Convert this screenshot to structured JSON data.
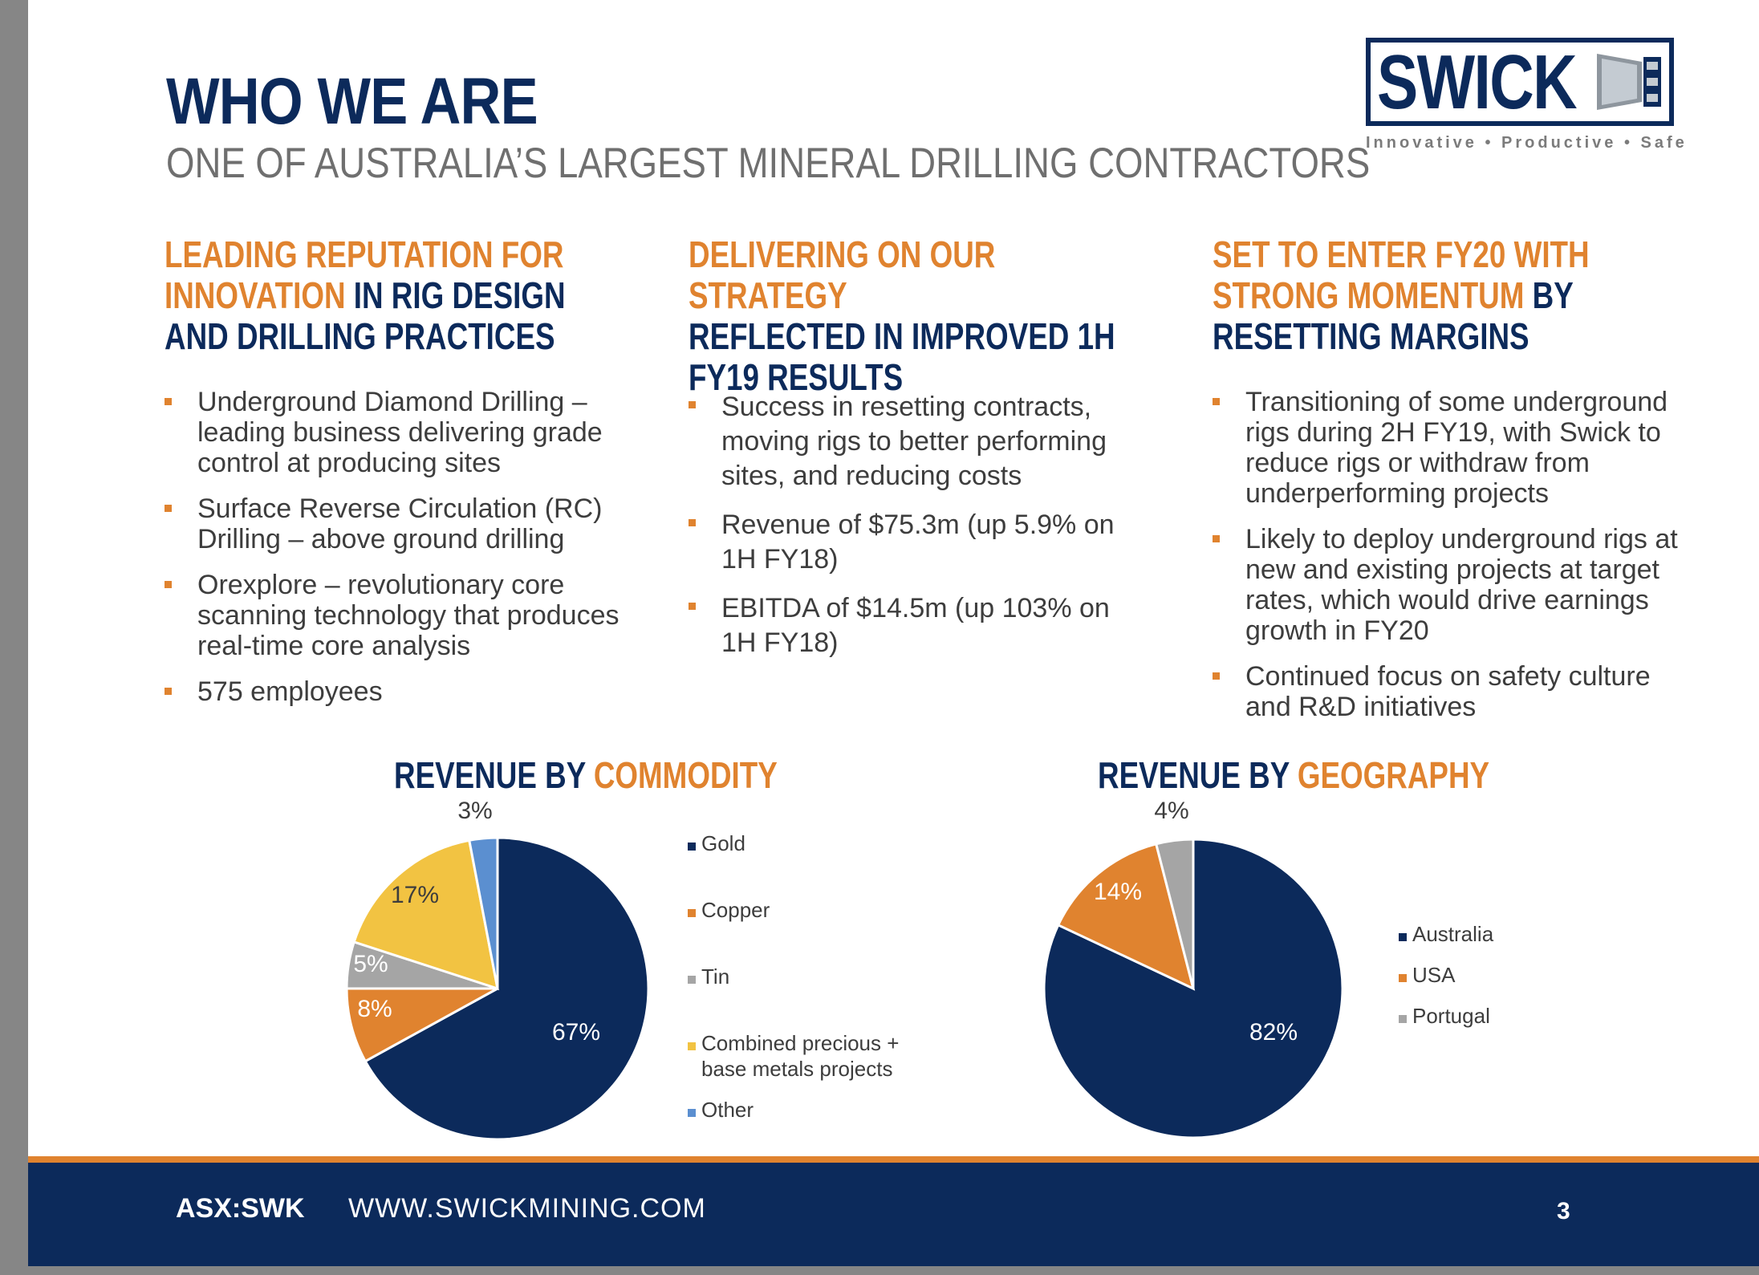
{
  "title": "WHO WE ARE",
  "subtitle": "ONE OF AUSTRALIA’S LARGEST MINERAL DRILLING CONTRACTORS",
  "logo": {
    "wordmark": "SWICK",
    "tagline": "Innovative • Productive • Safe",
    "color": "#0c2a5b"
  },
  "colors": {
    "navy": "#0c2a5b",
    "orange": "#e0832f",
    "body_text": "#3d3d3d",
    "subtitle": "#6f6f6f"
  },
  "columns": [
    {
      "heading": [
        {
          "text": "LEADING REPUTATION FOR",
          "color": "orange"
        },
        {
          "text": "INNOVATION",
          "color": "orange",
          "inline": true
        },
        {
          "text": " IN RIG DESIGN",
          "color": "navy"
        },
        {
          "text": "AND DRILLING PRACTICES",
          "color": "navy"
        }
      ],
      "bullets": [
        "Underground Diamond Drilling – leading business delivering grade control at producing sites",
        "Surface Reverse Circulation (RC) Drilling – above ground drilling",
        "Orexplore – revolutionary core scanning technology that produces real-time core analysis",
        "575 employees"
      ]
    },
    {
      "heading": [
        {
          "text": "DELIVERING ON OUR STRATEGY",
          "color": "orange"
        },
        {
          "text": "REFLECTED IN IMPROVED 1H",
          "color": "navy"
        },
        {
          "text": "FY19 RESULTS",
          "color": "navy"
        }
      ],
      "bullets": [
        "Success in resetting contracts, moving rigs to better performing sites, and reducing costs",
        "Revenue of $75.3m (up 5.9% on 1H FY18)",
        "EBITDA of $14.5m (up 103% on 1H FY18)"
      ]
    },
    {
      "heading": [
        {
          "text": "SET TO ENTER FY20 WITH",
          "color": "orange"
        },
        {
          "text": "STRONG MOMENTUM",
          "color": "orange",
          "inline": true
        },
        {
          "text": " BY",
          "color": "navy"
        },
        {
          "text": "RESETTING MARGINS",
          "color": "navy"
        }
      ],
      "bullets": [
        "Transitioning of some underground rigs during 2H FY19, with Swick to reduce rigs or withdraw from underperforming projects",
        "Likely to deploy underground rigs at new and existing projects at target rates, which would drive earnings growth in FY20",
        "Continued focus on safety culture and R&D initiatives"
      ]
    }
  ],
  "chart_data": [
    {
      "type": "pie",
      "title_parts": [
        "REVENUE BY ",
        "COMMODITY"
      ],
      "labels": [
        "Gold",
        "Copper",
        "Tin",
        "Combined precious + base metals projects",
        "Other"
      ],
      "values": [
        67,
        8,
        5,
        17,
        3
      ],
      "value_labels": [
        "67%",
        "8%",
        "5%",
        "17%",
        "3%"
      ],
      "colors": [
        "#0c2a5b",
        "#e0832f",
        "#a5a5a5",
        "#f2c342",
        "#5b8fd0"
      ],
      "start": "12 o'clock",
      "direction": "clockwise",
      "legend_position": "right"
    },
    {
      "type": "pie",
      "title_parts": [
        "REVENUE BY ",
        "GEOGRAPHY"
      ],
      "labels": [
        "Australia",
        "USA",
        "Portugal"
      ],
      "values": [
        82,
        14,
        4
      ],
      "value_labels": [
        "82%",
        "14%",
        "4%"
      ],
      "colors": [
        "#0c2a5b",
        "#e0832f",
        "#a5a5a5"
      ],
      "start": "12 o'clock",
      "direction": "clockwise",
      "legend_position": "right"
    }
  ],
  "footer": {
    "ticker": "ASX:SWK",
    "website": "WWW.SWICKMINING.COM",
    "page_number": "3"
  }
}
